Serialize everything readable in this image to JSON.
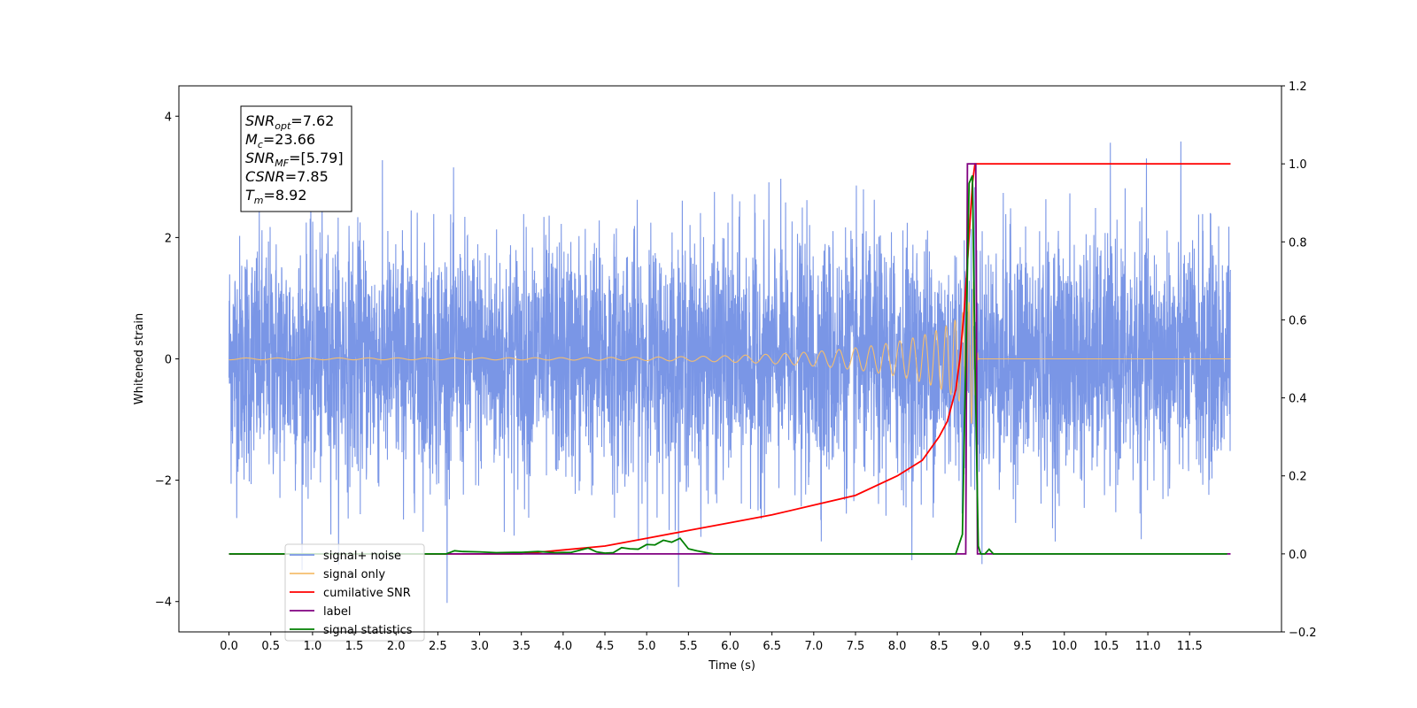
{
  "chart_data": {
    "type": "line",
    "xlabel": "Time (s)",
    "ylabel": "Whitened strain",
    "xlim": [
      -0.6,
      12.6
    ],
    "ylim": [
      -4.5,
      4.5
    ],
    "ylim_right": [
      -0.2,
      1.2
    ],
    "x_ticks": [
      0.0,
      0.5,
      1.0,
      1.5,
      2.0,
      2.5,
      3.0,
      3.5,
      4.0,
      4.5,
      5.0,
      5.5,
      6.0,
      6.5,
      7.0,
      7.5,
      8.0,
      8.5,
      9.0,
      9.5,
      10.0,
      10.5,
      11.0,
      11.5
    ],
    "x_tick_labels": [
      "0.0",
      "0.5",
      "1.0",
      "1.5",
      "2.0",
      "2.5",
      "3.0",
      "3.5",
      "4.0",
      "4.5",
      "5.0",
      "5.5",
      "6.0",
      "6.5",
      "7.0",
      "7.5",
      "8.0",
      "8.5",
      "9.0",
      "9.5",
      "10.0",
      "10.5",
      "11.0",
      "11.5"
    ],
    "y_ticks": [
      -4,
      -2,
      0,
      2,
      4
    ],
    "y_tick_labels": [
      "−4",
      "−2",
      "0",
      "2",
      "4"
    ],
    "y_right_ticks": [
      -0.2,
      0.0,
      0.2,
      0.4,
      0.6,
      0.8,
      1.0,
      1.2
    ],
    "y_right_tick_labels": [
      "−0.2",
      "0.0",
      "0.2",
      "0.4",
      "0.6",
      "0.8",
      "1.0",
      "1.2"
    ],
    "grid": false,
    "legend_position": "bottom-left",
    "annotation": [
      {
        "main": "SNR",
        "sub": "opt",
        "rest": "=7.62"
      },
      {
        "main": "M",
        "sub": "c",
        "rest": "=23.66"
      },
      {
        "main": "SNR",
        "sub": "MF",
        "rest": "=[5.79]"
      },
      {
        "main": "CSNR",
        "sub": "",
        "rest": "=7.85"
      },
      {
        "main": "T",
        "sub": "m",
        "rest": "=8.92"
      }
    ],
    "series": [
      {
        "name": "signal+ noise",
        "color": "#7a96e6",
        "axis": "left",
        "kind": "noise",
        "x_range": [
          0.0,
          11.99
        ],
        "typical_std": 1.0,
        "min": -4.1,
        "max": 4.0
      },
      {
        "name": "signal only",
        "color": "#f5be6e",
        "axis": "left",
        "kind": "chirp",
        "x_range": [
          0.0,
          11.99
        ],
        "merger_time": 8.92,
        "peak_amplitude": 1.1
      },
      {
        "name": "cumilative SNR",
        "color": "#ff0000",
        "axis": "right",
        "x": [
          0.0,
          2.5,
          3.5,
          4.0,
          4.5,
          5.0,
          5.5,
          6.0,
          6.5,
          7.0,
          7.5,
          8.0,
          8.3,
          8.5,
          8.6,
          8.7,
          8.75,
          8.8,
          8.85,
          8.9,
          8.93,
          9.0,
          11.99
        ],
        "y": [
          0.0,
          0.0,
          0.0,
          0.01,
          0.02,
          0.04,
          0.06,
          0.08,
          0.1,
          0.125,
          0.15,
          0.2,
          0.24,
          0.3,
          0.34,
          0.42,
          0.5,
          0.62,
          0.78,
          0.95,
          1.0,
          1.0,
          1.0
        ]
      },
      {
        "name": "label",
        "color": "#800080",
        "axis": "right",
        "x": [
          0.0,
          8.82,
          8.84,
          8.94,
          8.96,
          11.99
        ],
        "y": [
          0.0,
          0.0,
          1.0,
          1.0,
          0.0,
          0.0
        ]
      },
      {
        "name": "signal statistics",
        "color": "#008000",
        "axis": "right",
        "x": [
          0.0,
          2.6,
          2.7,
          2.8,
          3.0,
          3.2,
          3.4,
          3.5,
          3.7,
          3.9,
          4.1,
          4.3,
          4.4,
          4.5,
          4.6,
          4.7,
          4.8,
          4.9,
          5.0,
          5.1,
          5.2,
          5.3,
          5.4,
          5.5,
          5.6,
          5.7,
          5.8,
          8.7,
          8.78,
          8.82,
          8.86,
          8.9,
          8.93,
          8.97,
          9.0,
          9.05,
          9.1,
          9.15,
          9.2,
          11.95
        ],
        "y": [
          0.0,
          0.0,
          0.008,
          0.006,
          0.005,
          0.003,
          0.004,
          0.004,
          0.006,
          0.003,
          0.004,
          0.015,
          0.005,
          0.002,
          0.003,
          0.016,
          0.013,
          0.012,
          0.024,
          0.023,
          0.035,
          0.03,
          0.04,
          0.013,
          0.008,
          0.004,
          0.0,
          0.0,
          0.05,
          0.5,
          0.95,
          0.97,
          0.5,
          0.02,
          0.0,
          0.0,
          0.012,
          0.0,
          0.0,
          0.0
        ]
      }
    ],
    "legend_order": [
      {
        "name": "signal+ noise",
        "color": "#7a96e6"
      },
      {
        "name": "signal only",
        "color": "#f5be6e"
      },
      {
        "name": "cumilative SNR",
        "color": "#ff0000"
      },
      {
        "name": "label",
        "color": "#800080"
      },
      {
        "name": "signal statistics",
        "color": "#008000"
      }
    ]
  }
}
